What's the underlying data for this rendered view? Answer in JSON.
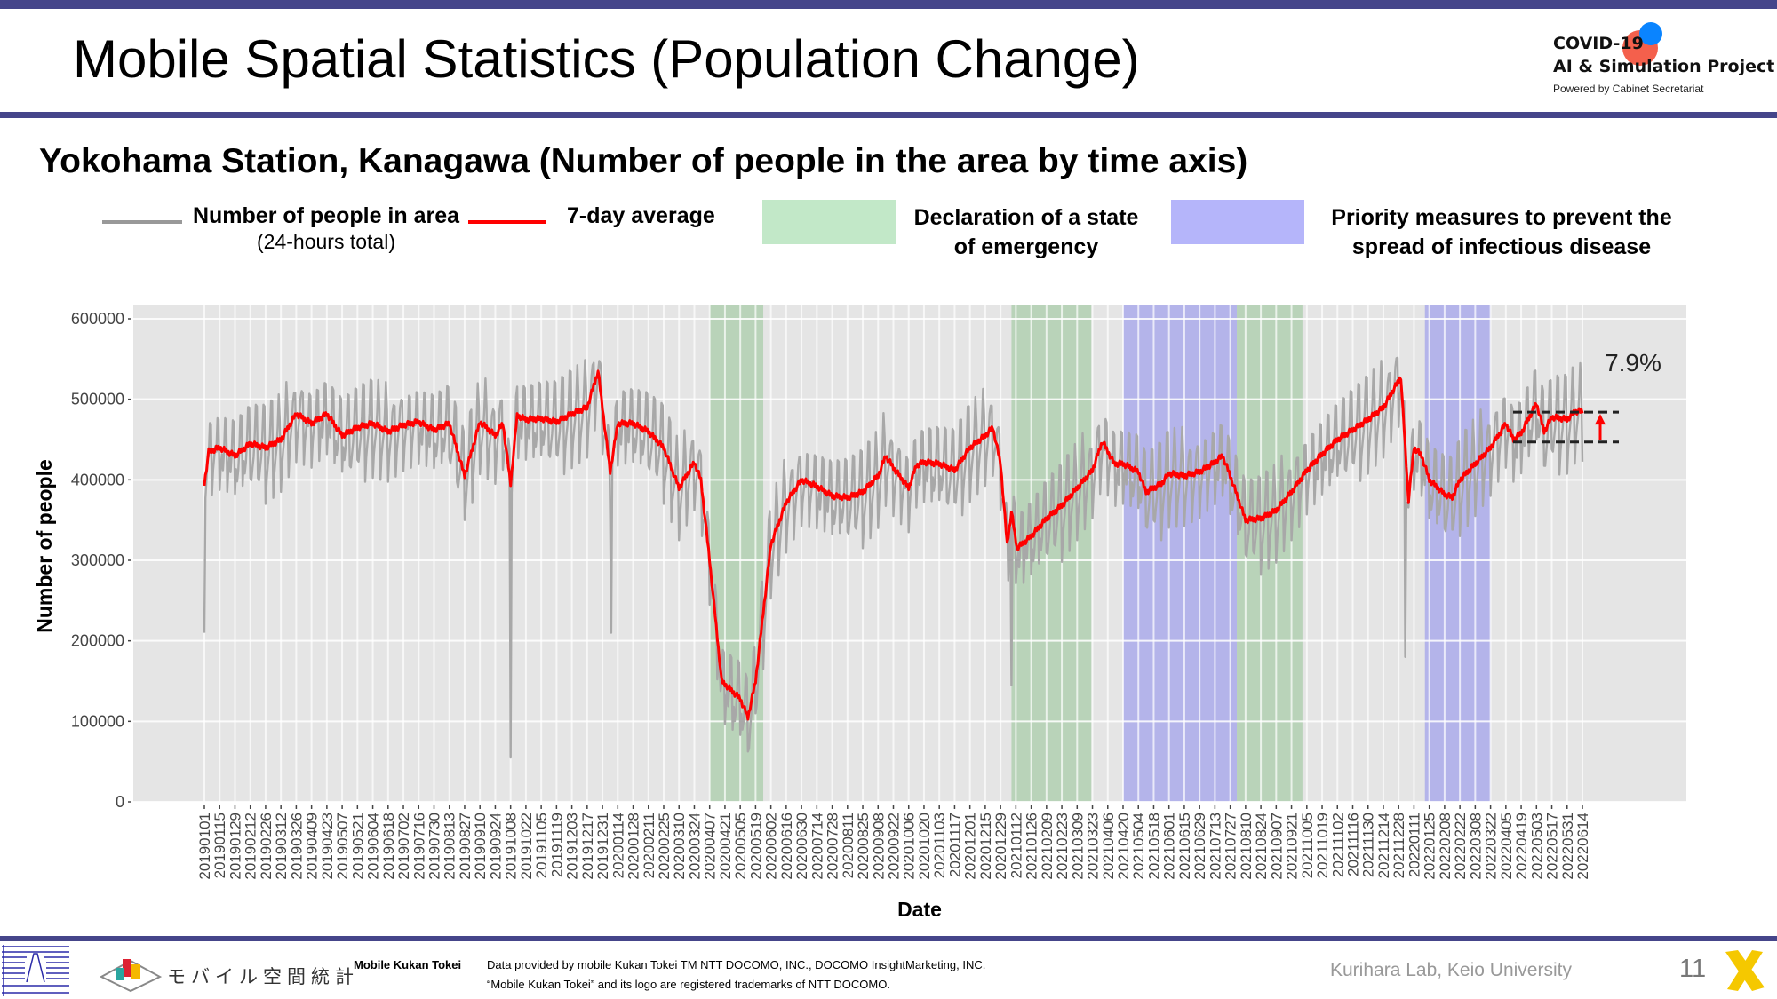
{
  "header": {
    "title": "Mobile Spatial Statistics (Population Change)",
    "logo": {
      "line1": "COVID-19",
      "line2": "AI & Simulation Project",
      "line3": "Powered by Cabinet Secretariat"
    }
  },
  "subtitle": "Yokohama Station, Kanagawa (Number of people in the area by time axis)",
  "legend": {
    "raw_label": "Number of people in area",
    "raw_sublabel": "(24-hours total)",
    "avg_label": "7-day average",
    "emergency_line1": "Declaration of a state",
    "emergency_line2": "of emergency",
    "priority_line1": "Priority measures to prevent the",
    "priority_line2": "spread of infectious disease"
  },
  "colors": {
    "raw": "#a8a8a8",
    "avg": "#ff0000",
    "emergency": "#b9d3b9",
    "priority": "#b4b4ea",
    "bar": "#45458a",
    "plot_bg": "#e5e5e5"
  },
  "chart_data": {
    "type": "line",
    "xlabel": "Date",
    "ylabel": "Number of people",
    "ylim": [
      0,
      600000
    ],
    "yticks": [
      "0",
      "100000",
      "200000",
      "300000",
      "400000",
      "500000",
      "600000"
    ],
    "xlim": [
      "20190101",
      "20220614"
    ],
    "xticks": [
      "20190101",
      "20190115",
      "20190129",
      "20190212",
      "20190226",
      "20190312",
      "20190326",
      "20190409",
      "20190423",
      "20190507",
      "20190521",
      "20190604",
      "20190618",
      "20190702",
      "20190716",
      "20190730",
      "20190813",
      "20190827",
      "20190910",
      "20190924",
      "20191008",
      "20191022",
      "20191105",
      "20191119",
      "20191203",
      "20191217",
      "20191231",
      "20200114",
      "20200128",
      "20200211",
      "20200225",
      "20200310",
      "20200324",
      "20200407",
      "20200421",
      "20200505",
      "20200519",
      "20200602",
      "20200616",
      "20200630",
      "20200714",
      "20200728",
      "20200811",
      "20200825",
      "20200908",
      "20200922",
      "20201006",
      "20201020",
      "20201103",
      "20201117",
      "20201201",
      "20201215",
      "20201229",
      "20210112",
      "20210126",
      "20210209",
      "20210223",
      "20210309",
      "20210323",
      "20210406",
      "20210420",
      "20210504",
      "20210518",
      "20210601",
      "20210615",
      "20210629",
      "20210713",
      "20210727",
      "20210810",
      "20210824",
      "20210907",
      "20210921",
      "20211005",
      "20211019",
      "20211102",
      "20211116",
      "20211130",
      "20211214",
      "20211228",
      "20220111",
      "20220125",
      "20220208",
      "20220222",
      "20220308",
      "20220322",
      "20220405",
      "20220419",
      "20220503",
      "20220517",
      "20220531",
      "20220614"
    ],
    "seven_day_average": [
      [
        "20190101",
        395000
      ],
      [
        "20190105",
        435000
      ],
      [
        "20190115",
        440000
      ],
      [
        "20190129",
        430000
      ],
      [
        "20190212",
        445000
      ],
      [
        "20190226",
        440000
      ],
      [
        "20190312",
        450000
      ],
      [
        "20190326",
        482000
      ],
      [
        "20190409",
        470000
      ],
      [
        "20190423",
        482000
      ],
      [
        "20190507",
        455000
      ],
      [
        "20190521",
        465000
      ],
      [
        "20190604",
        470000
      ],
      [
        "20190618",
        460000
      ],
      [
        "20190702",
        468000
      ],
      [
        "20190716",
        472000
      ],
      [
        "20190730",
        462000
      ],
      [
        "20190813",
        470000
      ],
      [
        "20190827",
        405000
      ],
      [
        "20190910",
        472000
      ],
      [
        "20190924",
        455000
      ],
      [
        "20191001",
        470000
      ],
      [
        "20191008",
        395000
      ],
      [
        "20191014",
        480000
      ],
      [
        "20191022",
        475000
      ],
      [
        "20191105",
        476000
      ],
      [
        "20191119",
        472000
      ],
      [
        "20191203",
        482000
      ],
      [
        "20191217",
        490000
      ],
      [
        "20191227",
        535000
      ],
      [
        "20200107",
        410000
      ],
      [
        "20200114",
        470000
      ],
      [
        "20200128",
        470000
      ],
      [
        "20200211",
        460000
      ],
      [
        "20200225",
        440000
      ],
      [
        "20200310",
        390000
      ],
      [
        "20200324",
        422000
      ],
      [
        "20200330",
        400000
      ],
      [
        "20200407",
        300000
      ],
      [
        "20200418",
        150000
      ],
      [
        "20200505",
        128000
      ],
      [
        "20200512",
        105000
      ],
      [
        "20200519",
        150000
      ],
      [
        "20200602",
        320000
      ],
      [
        "20200616",
        372000
      ],
      [
        "20200630",
        400000
      ],
      [
        "20200714",
        392000
      ],
      [
        "20200728",
        380000
      ],
      [
        "20200811",
        378000
      ],
      [
        "20200825",
        385000
      ],
      [
        "20200908",
        405000
      ],
      [
        "20200915",
        430000
      ],
      [
        "20200922",
        415000
      ],
      [
        "20201006",
        390000
      ],
      [
        "20201013",
        418000
      ],
      [
        "20201020",
        422000
      ],
      [
        "20201103",
        420000
      ],
      [
        "20201117",
        412000
      ],
      [
        "20201201",
        440000
      ],
      [
        "20201215",
        455000
      ],
      [
        "20201222",
        465000
      ],
      [
        "20201229",
        420000
      ],
      [
        "20210104",
        320000
      ],
      [
        "20210108",
        360000
      ],
      [
        "20210113",
        315000
      ],
      [
        "20210126",
        330000
      ],
      [
        "20210209",
        352000
      ],
      [
        "20210223",
        368000
      ],
      [
        "20210309",
        390000
      ],
      [
        "20210323",
        412000
      ],
      [
        "20210401",
        448000
      ],
      [
        "20210412",
        420000
      ],
      [
        "20210420",
        420000
      ],
      [
        "20210504",
        410000
      ],
      [
        "20210511",
        385000
      ],
      [
        "20210525",
        395000
      ],
      [
        "20210601",
        408000
      ],
      [
        "20210615",
        405000
      ],
      [
        "20210629",
        410000
      ],
      [
        "20210713",
        422000
      ],
      [
        "20210720",
        430000
      ],
      [
        "20210727",
        405000
      ],
      [
        "20210810",
        350000
      ],
      [
        "20210824",
        352000
      ],
      [
        "20210907",
        362000
      ],
      [
        "20210921",
        385000
      ],
      [
        "20211005",
        412000
      ],
      [
        "20211019",
        432000
      ],
      [
        "20211102",
        450000
      ],
      [
        "20211116",
        462000
      ],
      [
        "20211130",
        475000
      ],
      [
        "20211214",
        490000
      ],
      [
        "20211230",
        528000
      ],
      [
        "20220106",
        375000
      ],
      [
        "20220111",
        440000
      ],
      [
        "20220118",
        430000
      ],
      [
        "20220125",
        400000
      ],
      [
        "20220208",
        382000
      ],
      [
        "20220215",
        378000
      ],
      [
        "20220222",
        400000
      ],
      [
        "20220308",
        420000
      ],
      [
        "20220322",
        440000
      ],
      [
        "20220405",
        470000
      ],
      [
        "20220412",
        450000
      ],
      [
        "20220419",
        458000
      ],
      [
        "20220503",
        495000
      ],
      [
        "20220510",
        460000
      ],
      [
        "20220517",
        478000
      ],
      [
        "20220531",
        475000
      ],
      [
        "20220607",
        485000
      ],
      [
        "20220614",
        485000
      ]
    ],
    "daily_spread": {
      "below": 55000,
      "above": 45000
    },
    "daily_outliers": [
      [
        "20190101",
        210000
      ],
      [
        "20190827",
        350000
      ],
      [
        "20191008",
        55000
      ],
      [
        "20200108",
        210000
      ],
      [
        "20210108",
        145000
      ],
      [
        "20220103",
        180000
      ]
    ],
    "periods": [
      {
        "type": "emergency",
        "start": "20200407",
        "end": "20200525"
      },
      {
        "type": "emergency",
        "start": "20210108",
        "end": "20210321"
      },
      {
        "type": "priority",
        "start": "20210420",
        "end": "20210801"
      },
      {
        "type": "emergency",
        "start": "20210802",
        "end": "20210930"
      },
      {
        "type": "priority",
        "start": "20220121",
        "end": "20220321"
      }
    ],
    "annotation": {
      "label": "7.9%",
      "from": 447000,
      "to": 484000
    }
  },
  "footer": {
    "kukan_brand": "Mobile Kukan Tokei",
    "credit_line1": "Data provided by mobile Kukan Tokei TM NTT DOCOMO, INC., DOCOMO InsightMarketing, INC.",
    "credit_line2": "“Mobile Kukan Tokei” and its logo are registered trademarks of NTT DOCOMO.",
    "kukan_logo_text": "モバイル空間統計",
    "lab": "Kurihara Lab, Keio University",
    "page": "11"
  }
}
